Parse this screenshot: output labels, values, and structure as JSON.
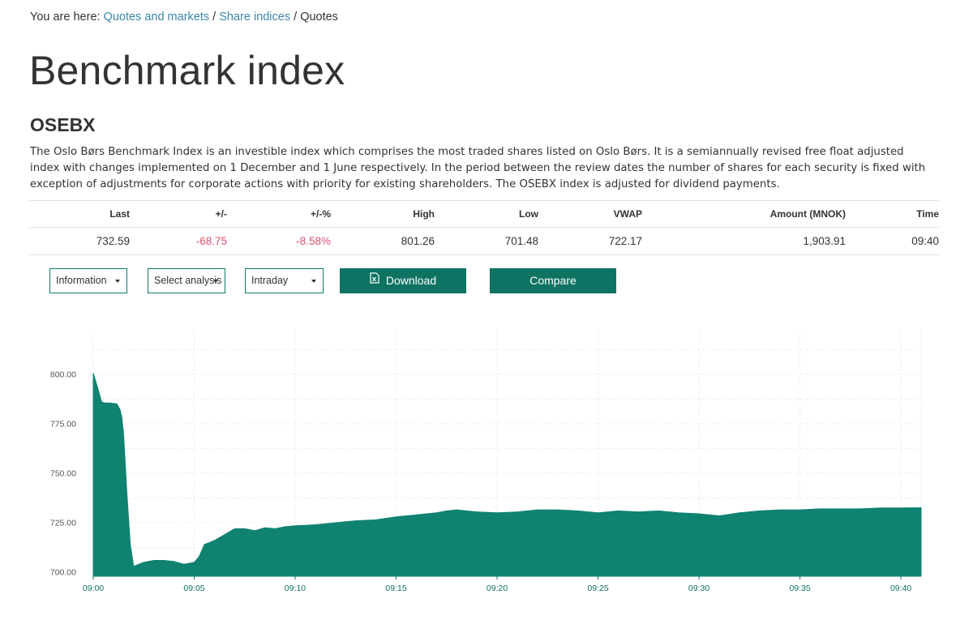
{
  "breadcrumb": {
    "prefix": "You are here: ",
    "items": [
      "Quotes and markets",
      "Share indices"
    ],
    "separator": " / ",
    "current": "Quotes"
  },
  "page_title": "Benchmark index",
  "index_name": "OSEBX",
  "description": "The Oslo Børs Benchmark Index is an investible index which comprises the most traded shares listed on Oslo Børs. It is a semiannually revised free float adjusted index with changes implemented on 1 December and 1 June respectively. In the period between the review dates the number of shares for each security is fixed with exception of adjustments for corporate actions with priority for existing shareholders. The OSEBX index is adjusted for dividend payments.",
  "quote_table": {
    "headers": [
      "Last",
      "+/-",
      "+/-%",
      "High",
      "Low",
      "VWAP",
      "Amount (MNOK)",
      "Time"
    ],
    "values": [
      "732.59",
      "-68.75",
      "-8.58%",
      "801.26",
      "701.48",
      "722.17",
      "1,903.91",
      "09:40"
    ]
  },
  "controls": {
    "information_select": "Information",
    "analysis_select": "Select analysis",
    "period_select": "Intraday",
    "download_button": "Download",
    "compare_button": "Compare"
  },
  "colors": {
    "accent": "#0f7363",
    "link": "#3b86a8",
    "negative": "#e0506f",
    "area_fill": "#0f8270"
  },
  "icons": {
    "download": "excel-file-icon",
    "select": "caret-down-icon"
  },
  "chart_data": {
    "type": "area",
    "title": "",
    "xlabel": "",
    "ylabel": "",
    "x_ticks": [
      "09:00",
      "09:05",
      "09:10",
      "09:15",
      "09:20",
      "09:25",
      "09:30",
      "09:35",
      "09:40"
    ],
    "y_ticks": [
      "700.00",
      "725.00",
      "750.00",
      "775.00",
      "800.00"
    ],
    "xlim": [
      "09:00",
      "09:41"
    ],
    "ylim": [
      698,
      822
    ],
    "grid": true,
    "series": [
      {
        "x": [
          "09:00",
          "09:00:10",
          "09:00:25",
          "09:00:35",
          "09:00:50",
          "09:01:10",
          "09:01:20",
          "09:01:25",
          "09:01:30",
          "09:01:40",
          "09:01:50",
          "09:02:00",
          "09:02:30",
          "09:03:00",
          "09:03:30",
          "09:04:00",
          "09:04:30",
          "09:05:00",
          "09:05:15",
          "09:05:30",
          "09:06:00",
          "09:06:30",
          "09:07:00",
          "09:07:30",
          "09:08:00",
          "09:08:30",
          "09:09:00",
          "09:09:30",
          "09:10:00",
          "09:11:00",
          "09:12:00",
          "09:12:30",
          "09:13:00",
          "09:14:00",
          "09:15:00",
          "09:16:00",
          "09:17:00",
          "09:17:30",
          "09:18:00",
          "09:19:00",
          "09:20:00",
          "09:21:00",
          "09:22:00",
          "09:23:00",
          "09:24:00",
          "09:25:00",
          "09:26:00",
          "09:27:00",
          "09:28:00",
          "09:29:00",
          "09:30:00",
          "09:31:00",
          "09:32:00",
          "09:33:00",
          "09:34:00",
          "09:35:00",
          "09:36:00",
          "09:37:00",
          "09:38:00",
          "09:39:00",
          "09:40:00",
          "09:41:00"
        ],
        "values": [
          800.5,
          795,
          786,
          785.5,
          785.5,
          785,
          782,
          778,
          770,
          740,
          714,
          703,
          705,
          706,
          706,
          705.5,
          704,
          705,
          708,
          714,
          716,
          719,
          722,
          722,
          721,
          722.5,
          722,
          723,
          723.5,
          724,
          725,
          725.5,
          726,
          726.5,
          728,
          729,
          730,
          731,
          731.5,
          730.5,
          730,
          730.5,
          731.5,
          731.5,
          731,
          730,
          731,
          730.5,
          731,
          730,
          729.5,
          728.5,
          730,
          731,
          731.5,
          731.5,
          732,
          732,
          732,
          732.5,
          732.5,
          732.59
        ]
      }
    ]
  }
}
